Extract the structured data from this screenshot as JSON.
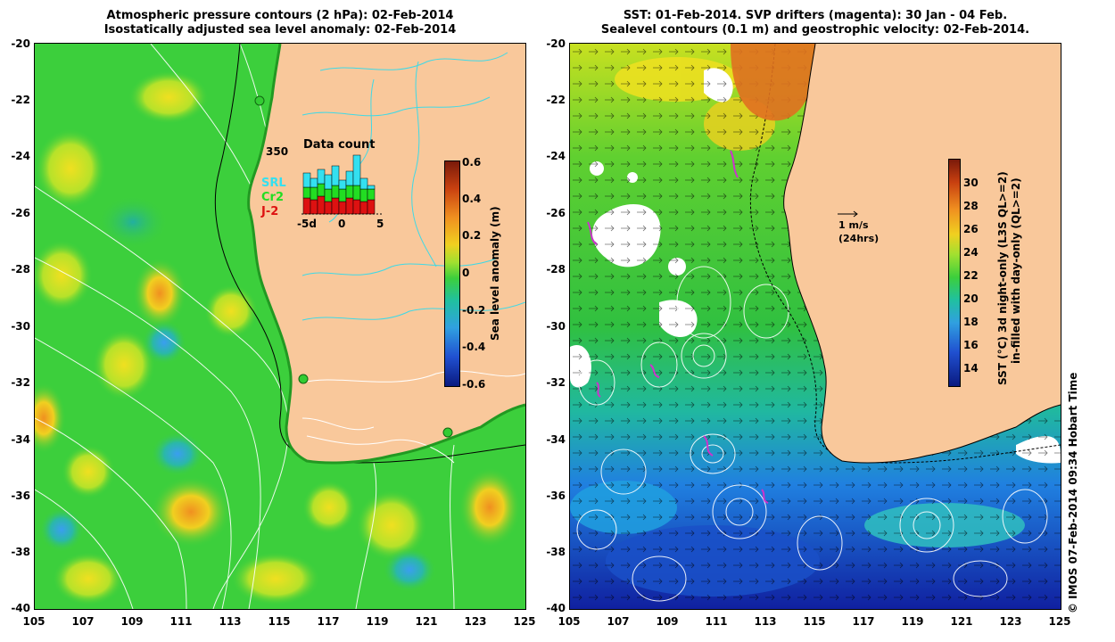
{
  "left_panel": {
    "title_line1": "Atmospheric pressure contours (2 hPa): 02-Feb-2014",
    "title_line2": "Isostatically adjusted sea level anomaly: 02-Feb-2014",
    "y_ticks": [
      "-20",
      "-22",
      "-24",
      "-26",
      "-28",
      "-30",
      "-32",
      "-34",
      "-36",
      "-38",
      "-40"
    ],
    "x_ticks": [
      "105",
      "107",
      "109",
      "111",
      "113",
      "115",
      "117",
      "119",
      "121",
      "123",
      "125"
    ],
    "colorbar_ticks": [
      "0.6",
      "0.4",
      "0.2",
      "0",
      "-0.2",
      "-0.4",
      "-0.6"
    ],
    "colorbar_label": "Sea level anomaly (m)",
    "inset": {
      "title": "Data count",
      "ymax_label": "350",
      "x_ticks": [
        "-5d",
        "0",
        "5"
      ],
      "legend": [
        {
          "label": "SRL",
          "color": "#33e0f0"
        },
        {
          "label": "Cr2",
          "color": "#22dd22"
        },
        {
          "label": "J-2",
          "color": "#dd1111"
        }
      ]
    }
  },
  "right_panel": {
    "title_line1": "SST: 01-Feb-2014. SVP drifters (magenta): 30 Jan - 04 Feb.",
    "title_line2": "Sealevel contours (0.1 m) and geostrophic velocity: 02-Feb-2014.",
    "y_ticks": [
      "-20",
      "-22",
      "-24",
      "-26",
      "-28",
      "-30",
      "-32",
      "-34",
      "-36",
      "-38",
      "-40"
    ],
    "x_ticks": [
      "105",
      "107",
      "109",
      "111",
      "113",
      "115",
      "117",
      "119",
      "121",
      "123",
      "125"
    ],
    "colorbar_ticks": [
      "30",
      "28",
      "26",
      "24",
      "22",
      "20",
      "18",
      "16",
      "14"
    ],
    "colorbar_label_line1": "SST (°C) 3d night-only (L3S QL>=2)",
    "colorbar_label_line2": "in-filled with day-only (QL>=2)",
    "scale_arrow_label": "1 m/s",
    "scale_arrow_sublabel": "(24hrs)"
  },
  "credit": "© IMOS 07-Feb-2014 09:34 Hobart Time",
  "colors": {
    "land": "#f9c89b",
    "ocean_green": "#3ccf3c",
    "cyan_contour": "#3fd9e6",
    "drifter_magenta": "#cc33cc"
  }
}
